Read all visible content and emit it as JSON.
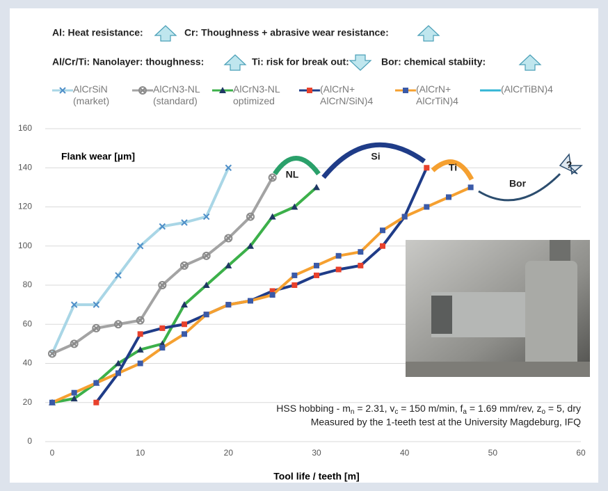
{
  "chart_data": {
    "type": "line",
    "headers": [
      {
        "text": "Al: Heat resistance:",
        "arrow": "up"
      },
      {
        "text": "Cr: Thoughness + abrasive wear resistance:",
        "arrow": "up"
      },
      {
        "text": "Al/Cr/Ti: Nanolayer: thoughness:",
        "arrow": "up"
      },
      {
        "text": "Ti: risk for break out:",
        "arrow": "down"
      },
      {
        "text": "Bor: chemical stabiity:",
        "arrow": "up"
      }
    ],
    "y_label": "Flank wear [µm]",
    "x_label": "Tool life / teeth [m]",
    "annotations": [
      "NL",
      "Si",
      "Ti",
      "Bor",
      "?"
    ],
    "note_segments": [
      "HSS hobbing - m",
      "n",
      " = 2.31, v",
      "c",
      " = 150 m/min, f",
      "a",
      " = 1.69 mm/rev, z",
      "o",
      " = 5, dry"
    ],
    "note_line2": "Measured by the 1-teeth test at the University Magdeburg, IFQ",
    "xlim": [
      0,
      60
    ],
    "xticks": [
      0,
      10,
      20,
      30,
      40,
      50,
      60
    ],
    "ylim": [
      0,
      160
    ],
    "yticks": [
      0,
      20,
      40,
      60,
      80,
      100,
      120,
      140,
      160
    ],
    "grid": true,
    "series": [
      {
        "name": "AlCrSiN\n(market)",
        "color": "#a9d6e6",
        "marker": "x",
        "marker_color": "#4f8fc8",
        "x": [
          0,
          2.5,
          5,
          7.5,
          10,
          12.5,
          15,
          17.5,
          20
        ],
        "values": [
          45,
          70,
          70,
          85,
          100,
          110,
          112,
          115,
          140
        ]
      },
      {
        "name": "AlCrN3-NL\n(standard)",
        "color": "#a3a3a3",
        "marker": "xo",
        "marker_color": "#8a8a8a",
        "x": [
          0,
          2.5,
          5,
          7.5,
          10,
          12.5,
          15,
          17.5,
          20,
          22.5,
          25
        ],
        "values": [
          45,
          50,
          58,
          60,
          62,
          80,
          90,
          95,
          104,
          115,
          135
        ]
      },
      {
        "name": "AlCrN3-NL\noptimized",
        "color": "#3cb04a",
        "marker": "triangle",
        "marker_color": "#1f3864",
        "x": [
          0,
          2.5,
          5,
          7.5,
          10,
          12.5,
          15,
          17.5,
          20,
          22.5,
          25,
          27.5,
          30
        ],
        "values": [
          20,
          22,
          30,
          40,
          47,
          50,
          70,
          80,
          90,
          100,
          115,
          120,
          130
        ]
      },
      {
        "name": "(AlCrN+\nAlCrN/SiN)4",
        "color": "#1f3c88",
        "marker": "square",
        "marker_color": "#e8412c",
        "x": [
          5,
          7.5,
          10,
          12.5,
          15,
          17.5,
          20,
          22.5,
          25,
          27.5,
          30,
          32.5,
          35,
          37.5,
          40,
          42.5
        ],
        "values": [
          20,
          35,
          55,
          58,
          60,
          65,
          70,
          72,
          77,
          80,
          85,
          88,
          90,
          100,
          115,
          140
        ]
      },
      {
        "name": "(AlCrN+\nAlCrTiN)4",
        "color": "#f5a030",
        "marker": "square",
        "marker_color": "#3a5aa8",
        "x": [
          0,
          2.5,
          5,
          7.5,
          10,
          12.5,
          15,
          17.5,
          20,
          22.5,
          25,
          27.5,
          30,
          32.5,
          35,
          37.5,
          40,
          42.5,
          45,
          47.5
        ],
        "values": [
          20,
          25,
          30,
          35,
          40,
          48,
          55,
          65,
          70,
          72,
          75,
          85,
          90,
          95,
          97,
          108,
          115,
          120,
          125,
          130
        ]
      },
      {
        "name": "(AlCrTiBN)4",
        "color": "#33b5d5",
        "marker": "none",
        "marker_color": "#33b5d5",
        "x": [],
        "values": []
      }
    ]
  }
}
